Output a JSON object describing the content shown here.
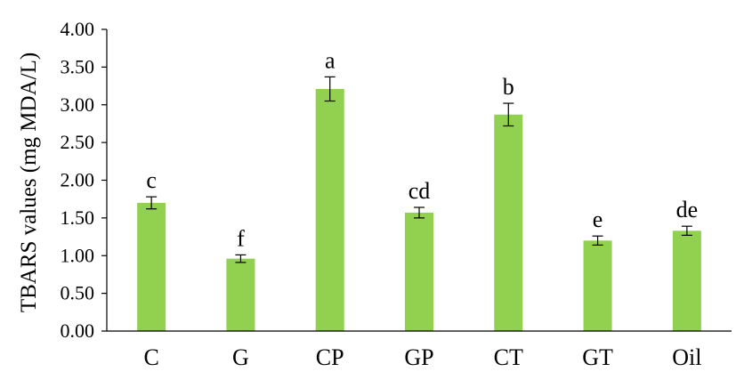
{
  "chart_data": {
    "type": "bar",
    "title": "",
    "xlabel": "",
    "ylabel": "TBARS values (mg MDA/L)",
    "categories": [
      "C",
      "G",
      "CP",
      "GP",
      "CT",
      "GT",
      "Oil"
    ],
    "values": [
      1.7,
      0.96,
      3.21,
      1.57,
      2.87,
      1.2,
      1.33
    ],
    "errors": [
      0.08,
      0.05,
      0.16,
      0.07,
      0.15,
      0.06,
      0.06
    ],
    "significance_letters": [
      "c",
      "f",
      "a",
      "cd",
      "b",
      "e",
      "de"
    ],
    "ylim": [
      0,
      4
    ],
    "yticks": [
      "0.00",
      "0.50",
      "1.00",
      "1.50",
      "2.00",
      "2.50",
      "3.00",
      "3.50",
      "4.00"
    ],
    "grid": false,
    "bar_color": "#92d050",
    "axis_color": "#000000"
  }
}
